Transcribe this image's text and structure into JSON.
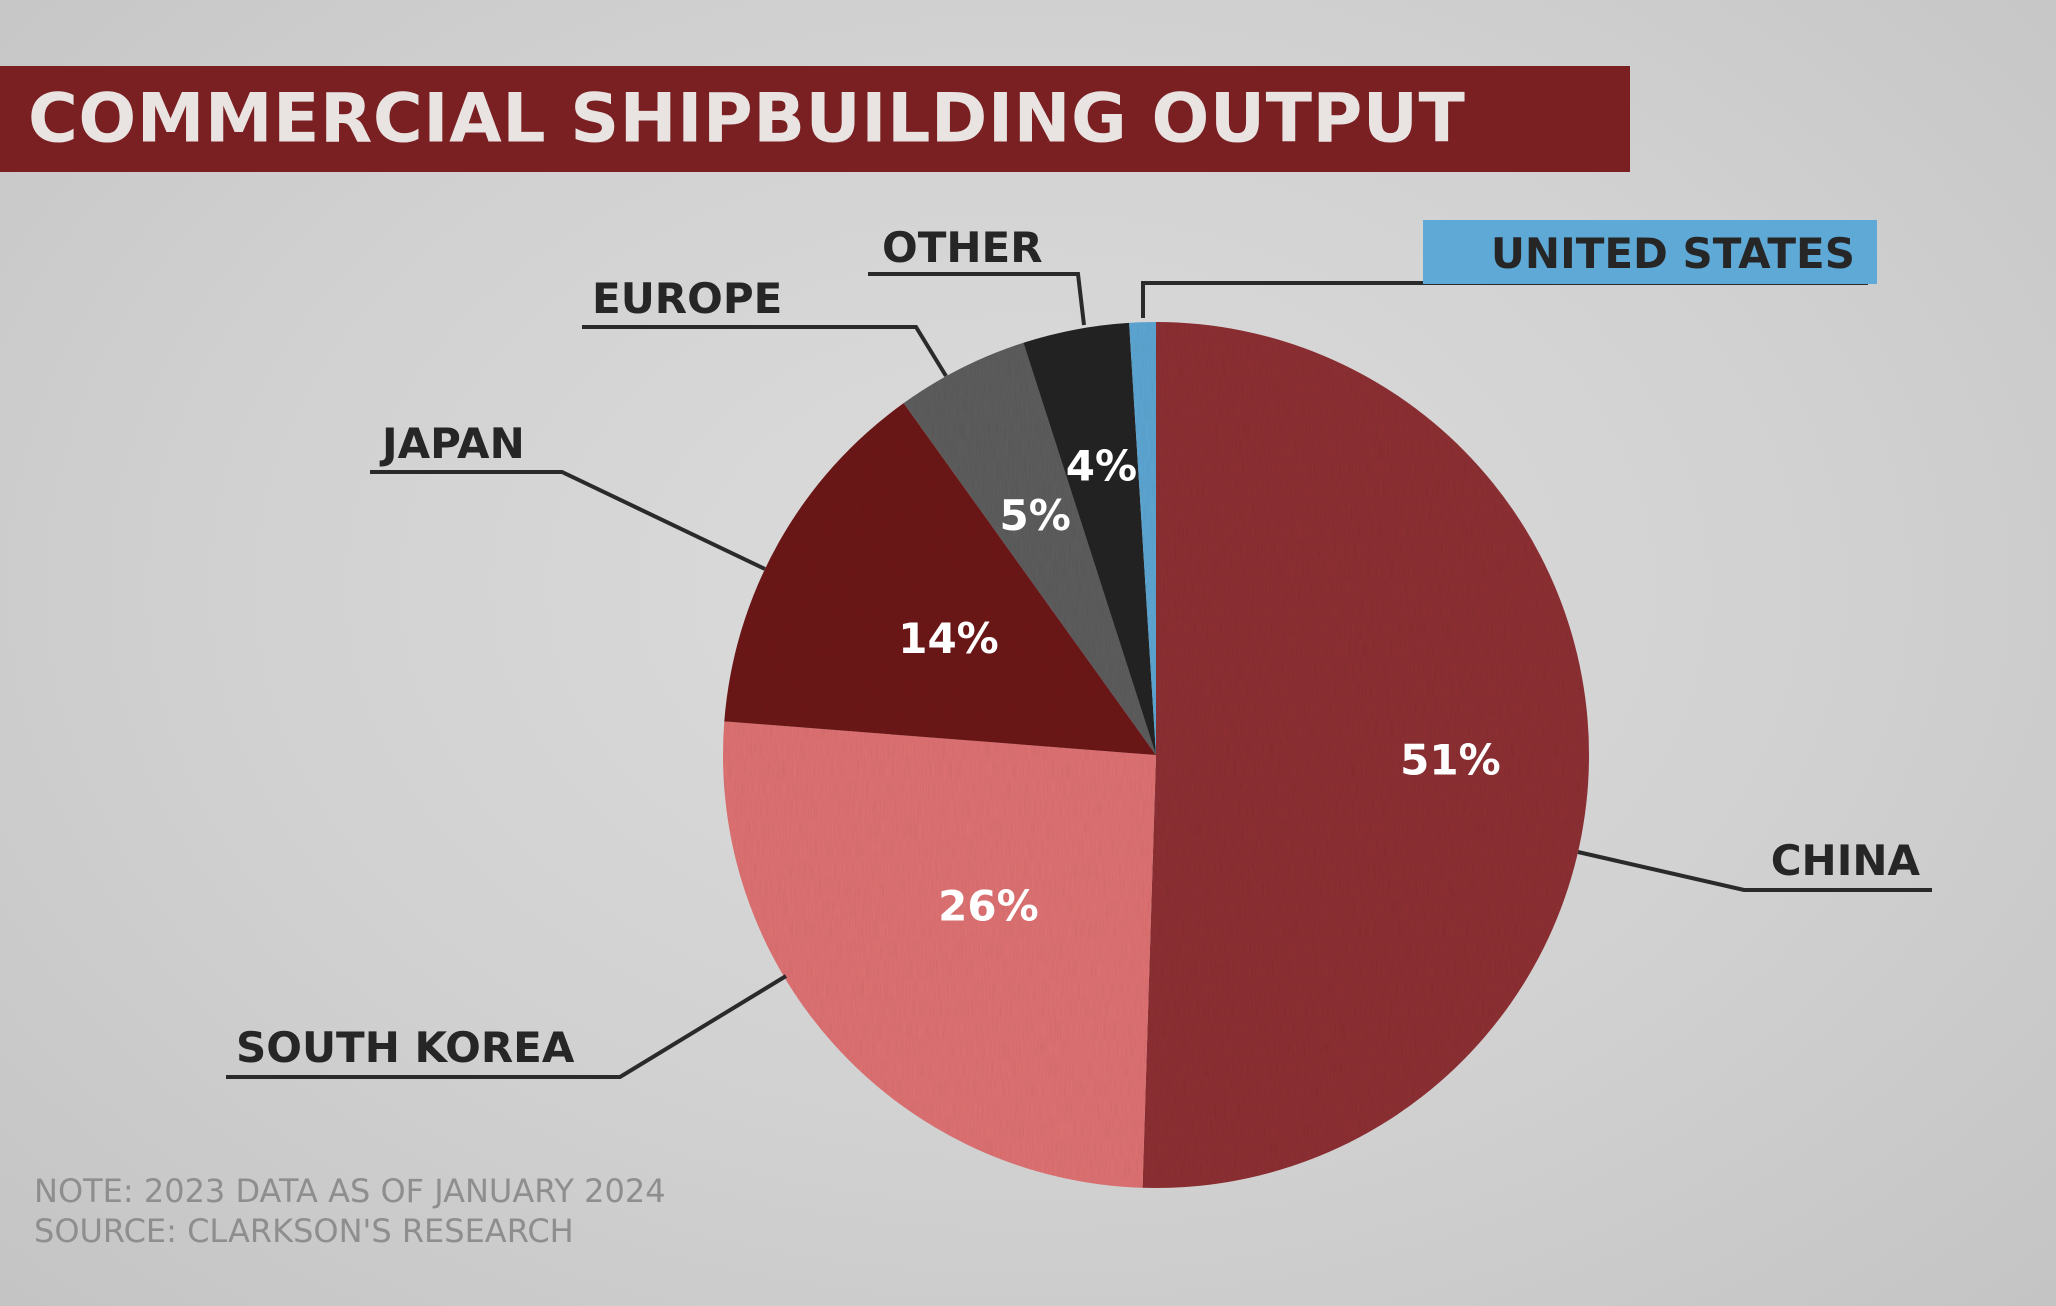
{
  "title": "COMMERCIAL SHIPBUILDING OUTPUT",
  "note": "NOTE: 2023 DATA AS OF JANUARY 2024",
  "source": "SOURCE: CLARKSON'S RESEARCH",
  "chart_data": {
    "type": "pie",
    "title": "COMMERCIAL SHIPBUILDING OUTPUT",
    "start": "12 o'clock",
    "direction": "clockwise",
    "slices": [
      {
        "label": "CHINA",
        "value": 51,
        "display": "51%",
        "color": "#8f3236",
        "label_color": "#ffffff"
      },
      {
        "label": "SOUTH KOREA",
        "value": 26,
        "display": "26%",
        "color": "#e17374",
        "label_color": "#ffffff"
      },
      {
        "label": "JAPAN",
        "value": 14,
        "display": "14%",
        "color": "#6e1d1f",
        "label_color": "#ffffff"
      },
      {
        "label": "EUROPE",
        "value": 5,
        "display": "5%",
        "color": "#5e5e5e",
        "label_color": "#ffffff"
      },
      {
        "label": "OTHER",
        "value": 4,
        "display": "4%",
        "color": "#262626",
        "label_color": "#ffffff"
      },
      {
        "label": "UNITED STATES",
        "value": 1,
        "display": "",
        "color": "#5fa9d6",
        "label_color": "#ffffff",
        "highlighted": true
      }
    ],
    "colors": {
      "title_bar": "#7a1f22",
      "callout_line": "#2a2a2a",
      "category_text": "#262626",
      "highlight_box": "#5fa9d6"
    }
  }
}
